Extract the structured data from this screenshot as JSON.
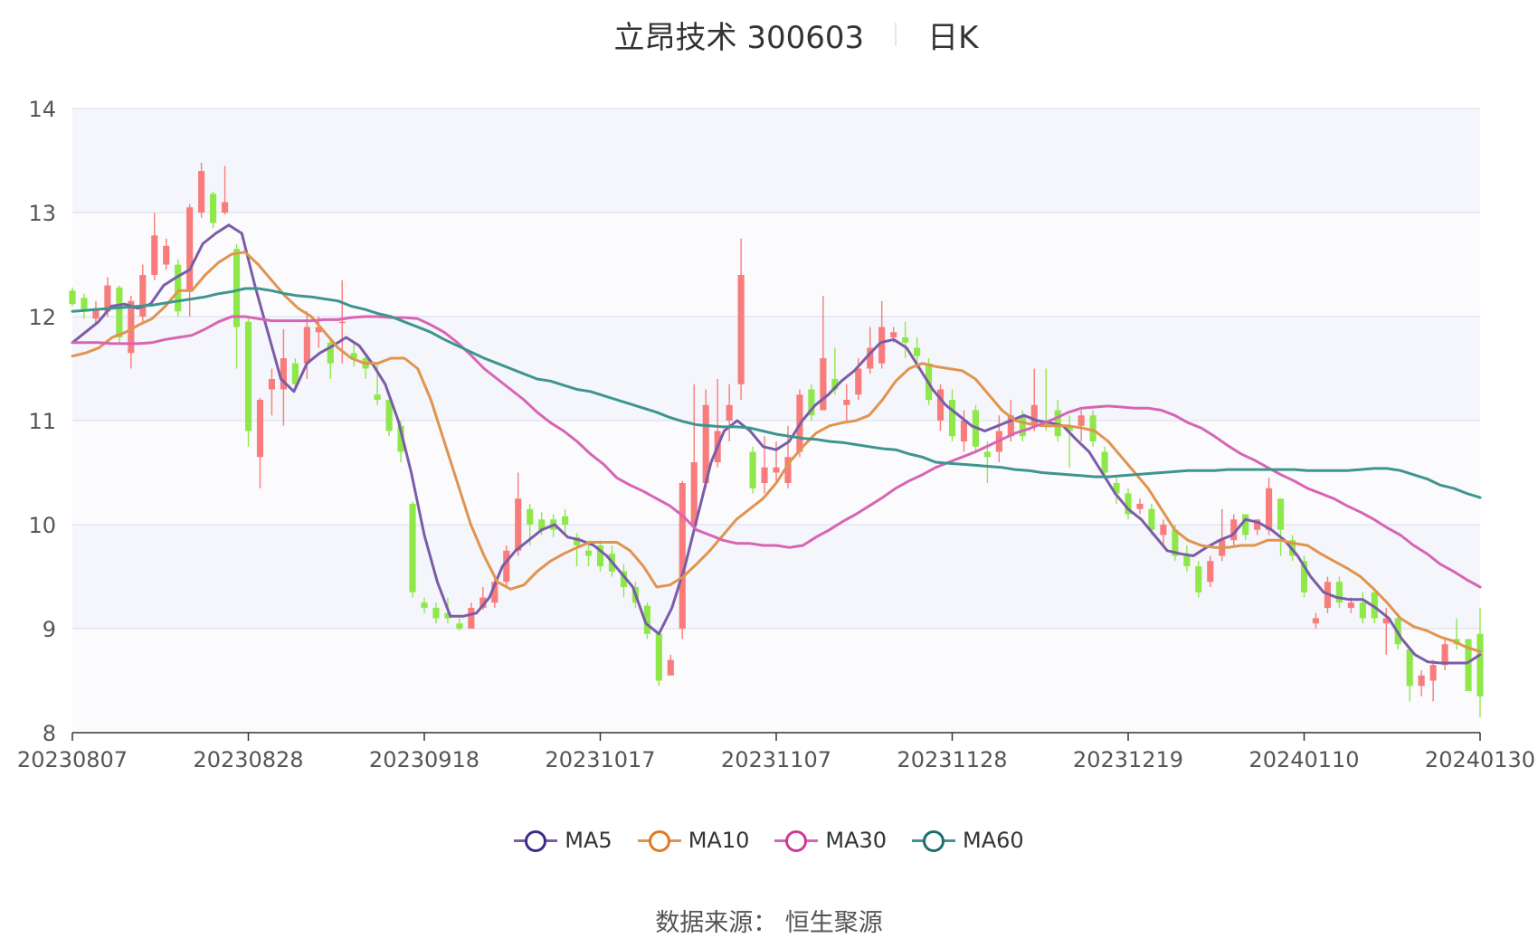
{
  "chart_data": {
    "type": "candlestick",
    "title": "立昂技术 300603",
    "subtitle": "日K",
    "source_label": "数据来源：",
    "source_value": "恒生聚源",
    "ylim": [
      8,
      14
    ],
    "yticks": [
      8,
      9,
      10,
      11,
      12,
      13,
      14
    ],
    "xticks": [
      "20230807",
      "20230828",
      "20230918",
      "20231017",
      "20231107",
      "20231128",
      "20231219",
      "20240110",
      "20240130"
    ],
    "up_color": "#f87c7c",
    "down_color": "#8ee84a",
    "grid": true,
    "legend_position": "bottom",
    "candles": [
      [
        12.25,
        12.12,
        12.28,
        12.1
      ],
      [
        12.18,
        12.05,
        12.22,
        11.98
      ],
      [
        11.98,
        12.08,
        12.15,
        11.92
      ],
      [
        12.05,
        12.3,
        12.38,
        12.0
      ],
      [
        12.28,
        11.8,
        12.3,
        11.75
      ],
      [
        11.65,
        12.15,
        12.2,
        11.5
      ],
      [
        12.0,
        12.4,
        12.5,
        11.95
      ],
      [
        12.4,
        12.78,
        13.0,
        12.35
      ],
      [
        12.5,
        12.68,
        12.75,
        12.45
      ],
      [
        12.5,
        12.05,
        12.55,
        12.0
      ],
      [
        12.25,
        13.05,
        13.08,
        12.0
      ],
      [
        13.0,
        13.4,
        13.48,
        12.95
      ],
      [
        13.18,
        12.9,
        13.2,
        12.85
      ],
      [
        13.0,
        13.1,
        13.45,
        12.98
      ],
      [
        12.65,
        11.9,
        12.7,
        11.5
      ],
      [
        11.95,
        10.9,
        12.0,
        10.75
      ],
      [
        10.65,
        11.2,
        11.22,
        10.35
      ],
      [
        11.3,
        11.4,
        11.5,
        11.05
      ],
      [
        11.3,
        11.6,
        11.88,
        10.95
      ],
      [
        11.55,
        11.35,
        11.6,
        11.3
      ],
      [
        11.55,
        11.9,
        12.05,
        11.4
      ],
      [
        11.85,
        11.9,
        12.0,
        11.7
      ],
      [
        11.75,
        11.55,
        11.8,
        11.4
      ],
      [
        11.95,
        11.95,
        12.35,
        11.55
      ],
      [
        11.65,
        11.6,
        11.75,
        11.52
      ],
      [
        11.6,
        11.5,
        11.65,
        11.4
      ],
      [
        11.25,
        11.2,
        11.55,
        11.15
      ],
      [
        11.2,
        10.9,
        11.2,
        10.85
      ],
      [
        10.95,
        10.7,
        11.0,
        10.6
      ],
      [
        10.2,
        9.35,
        10.22,
        9.3
      ],
      [
        9.25,
        9.2,
        9.3,
        9.15
      ],
      [
        9.2,
        9.1,
        9.25,
        9.05
      ],
      [
        9.15,
        9.1,
        9.3,
        9.05
      ],
      [
        9.05,
        9.0,
        9.1,
        8.98
      ],
      [
        9.0,
        9.2,
        9.25,
        9.0
      ],
      [
        9.2,
        9.3,
        9.4,
        9.18
      ],
      [
        9.25,
        9.45,
        9.5,
        9.2
      ],
      [
        9.45,
        9.75,
        9.8,
        9.4
      ],
      [
        9.75,
        10.25,
        10.5,
        9.7
      ],
      [
        10.15,
        10.0,
        10.2,
        9.8
      ],
      [
        10.05,
        9.95,
        10.12,
        9.9
      ],
      [
        10.05,
        9.95,
        10.1,
        9.88
      ],
      [
        10.08,
        10.0,
        10.15,
        9.92
      ],
      [
        9.88,
        9.8,
        9.92,
        9.6
      ],
      [
        9.75,
        9.7,
        9.85,
        9.6
      ],
      [
        9.8,
        9.6,
        9.85,
        9.55
      ],
      [
        9.72,
        9.55,
        9.8,
        9.5
      ],
      [
        9.55,
        9.4,
        9.62,
        9.3
      ],
      [
        9.4,
        9.25,
        9.45,
        9.2
      ],
      [
        9.22,
        8.95,
        9.25,
        8.9
      ],
      [
        8.95,
        8.5,
        8.95,
        8.45
      ],
      [
        8.55,
        8.7,
        8.75,
        8.55
      ],
      [
        9.0,
        10.4,
        10.42,
        8.9
      ],
      [
        10.0,
        10.6,
        11.35,
        10.0
      ],
      [
        10.4,
        11.15,
        11.3,
        10.35
      ],
      [
        10.6,
        10.9,
        11.4,
        10.55
      ],
      [
        11.0,
        11.15,
        11.35,
        10.8
      ],
      [
        11.35,
        12.4,
        12.75,
        11.2
      ],
      [
        10.7,
        10.35,
        10.75,
        10.3
      ],
      [
        10.4,
        10.55,
        10.85,
        10.3
      ],
      [
        10.5,
        10.55,
        10.8,
        10.4
      ],
      [
        10.4,
        10.65,
        10.95,
        10.35
      ],
      [
        10.7,
        11.25,
        11.3,
        10.65
      ],
      [
        11.3,
        11.05,
        11.35,
        11.0
      ],
      [
        11.1,
        11.6,
        12.2,
        11.1
      ],
      [
        11.4,
        11.3,
        11.7,
        11.25
      ],
      [
        11.15,
        11.2,
        11.35,
        11.0
      ],
      [
        11.25,
        11.5,
        11.6,
        11.2
      ],
      [
        11.5,
        11.7,
        11.9,
        11.45
      ],
      [
        11.55,
        11.9,
        12.15,
        11.5
      ],
      [
        11.8,
        11.85,
        11.9,
        11.75
      ],
      [
        11.8,
        11.75,
        11.95,
        11.6
      ],
      [
        11.7,
        11.62,
        11.8,
        11.5
      ],
      [
        11.55,
        11.2,
        11.6,
        11.15
      ],
      [
        11.0,
        11.3,
        11.35,
        10.9
      ],
      [
        11.2,
        10.85,
        11.3,
        10.8
      ],
      [
        10.8,
        11.0,
        11.1,
        10.7
      ],
      [
        11.1,
        10.75,
        11.15,
        10.7
      ],
      [
        10.7,
        10.65,
        10.8,
        10.4
      ],
      [
        10.7,
        10.9,
        11.05,
        10.6
      ],
      [
        10.85,
        11.05,
        11.2,
        10.8
      ],
      [
        11.05,
        10.85,
        11.1,
        10.8
      ],
      [
        10.95,
        11.15,
        11.5,
        10.9
      ],
      [
        11.0,
        10.95,
        11.5,
        10.9
      ],
      [
        11.1,
        10.85,
        11.2,
        10.8
      ],
      [
        10.95,
        10.9,
        11.05,
        10.55
      ],
      [
        10.95,
        11.05,
        11.1,
        10.8
      ],
      [
        11.05,
        10.8,
        11.1,
        10.75
      ],
      [
        10.7,
        10.5,
        10.75,
        10.45
      ],
      [
        10.4,
        10.3,
        10.45,
        10.2
      ],
      [
        10.3,
        10.1,
        10.35,
        10.05
      ],
      [
        10.15,
        10.2,
        10.25,
        10.1
      ],
      [
        10.15,
        9.95,
        10.2,
        9.9
      ],
      [
        9.9,
        10.0,
        10.05,
        9.8
      ],
      [
        9.95,
        9.7,
        10.0,
        9.65
      ],
      [
        9.7,
        9.6,
        9.8,
        9.55
      ],
      [
        9.6,
        9.35,
        9.65,
        9.3
      ],
      [
        9.45,
        9.65,
        9.7,
        9.4
      ],
      [
        9.7,
        9.85,
        10.15,
        9.65
      ],
      [
        9.85,
        10.05,
        10.1,
        9.8
      ],
      [
        10.1,
        9.9,
        10.1,
        9.85
      ],
      [
        9.95,
        10.05,
        10.05,
        9.9
      ],
      [
        9.95,
        10.35,
        10.45,
        9.9
      ],
      [
        10.25,
        9.95,
        10.25,
        9.7
      ],
      [
        9.85,
        9.7,
        9.9,
        9.65
      ],
      [
        9.65,
        9.35,
        9.7,
        9.3
      ],
      [
        9.05,
        9.1,
        9.15,
        9.0
      ],
      [
        9.2,
        9.45,
        9.5,
        9.15
      ],
      [
        9.45,
        9.25,
        9.5,
        9.2
      ],
      [
        9.2,
        9.25,
        9.3,
        9.15
      ],
      [
        9.25,
        9.1,
        9.35,
        9.05
      ],
      [
        9.35,
        9.1,
        9.35,
        9.05
      ],
      [
        9.05,
        9.1,
        9.2,
        8.75
      ],
      [
        9.1,
        8.85,
        9.15,
        8.8
      ],
      [
        8.8,
        8.45,
        8.8,
        8.3
      ],
      [
        8.45,
        8.55,
        8.6,
        8.35
      ],
      [
        8.5,
        8.65,
        8.7,
        8.3
      ],
      [
        8.65,
        8.85,
        8.9,
        8.6
      ],
      [
        8.9,
        8.85,
        9.1,
        8.8
      ],
      [
        8.9,
        8.4,
        8.9,
        8.4
      ],
      [
        8.95,
        8.35,
        9.2,
        8.15
      ]
    ],
    "series": [
      {
        "name": "MA5",
        "color": "#7b5ca8",
        "values": [
          11.75,
          11.85,
          11.95,
          12.1,
          12.12,
          12.08,
          12.12,
          12.3,
          12.38,
          12.45,
          12.7,
          12.8,
          12.88,
          12.8,
          12.3,
          11.85,
          11.4,
          11.28,
          11.55,
          11.65,
          11.72,
          11.8,
          11.72,
          11.55,
          11.35,
          11.0,
          10.5,
          9.9,
          9.45,
          9.12,
          9.12,
          9.15,
          9.3,
          9.6,
          9.75,
          9.85,
          9.95,
          10.0,
          9.88,
          9.85,
          9.8,
          9.7,
          9.55,
          9.4,
          9.05,
          8.95,
          9.2,
          9.6,
          10.1,
          10.6,
          10.9,
          11.0,
          10.9,
          10.75,
          10.72,
          10.8,
          11.0,
          11.15,
          11.25,
          11.38,
          11.48,
          11.62,
          11.75,
          11.78,
          11.7,
          11.5,
          11.3,
          11.15,
          11.05,
          10.95,
          10.9,
          10.95,
          11.0,
          11.05,
          11.0,
          10.98,
          10.95,
          10.82,
          10.7,
          10.5,
          10.3,
          10.15,
          10.05,
          9.9,
          9.75,
          9.72,
          9.7,
          9.78,
          9.85,
          9.9,
          10.05,
          10.02,
          9.95,
          9.85,
          9.7,
          9.5,
          9.35,
          9.3,
          9.28,
          9.28,
          9.2,
          9.1,
          8.9,
          8.75,
          8.68,
          8.67,
          8.67,
          8.67,
          8.75
        ]
      },
      {
        "name": "MA10",
        "color": "#e0944f",
        "values": [
          11.62,
          11.65,
          11.7,
          11.8,
          11.85,
          11.92,
          11.98,
          12.1,
          12.25,
          12.25,
          12.4,
          12.52,
          12.6,
          12.62,
          12.5,
          12.35,
          12.2,
          12.08,
          12.0,
          11.85,
          11.7,
          11.6,
          11.55,
          11.55,
          11.6,
          11.6,
          11.5,
          11.2,
          10.8,
          10.4,
          10.0,
          9.7,
          9.45,
          9.38,
          9.42,
          9.55,
          9.65,
          9.72,
          9.78,
          9.83,
          9.83,
          9.83,
          9.75,
          9.6,
          9.4,
          9.42,
          9.5,
          9.62,
          9.75,
          9.9,
          10.05,
          10.15,
          10.25,
          10.4,
          10.6,
          10.75,
          10.88,
          10.95,
          10.98,
          11.0,
          11.05,
          11.2,
          11.38,
          11.5,
          11.55,
          11.52,
          11.5,
          11.48,
          11.4,
          11.25,
          11.1,
          11.0,
          10.97,
          10.95,
          10.95,
          10.95,
          10.93,
          10.9,
          10.8,
          10.65,
          10.5,
          10.35,
          10.15,
          9.95,
          9.85,
          9.8,
          9.78,
          9.78,
          9.8,
          9.8,
          9.85,
          9.85,
          9.82,
          9.8,
          9.72,
          9.65,
          9.58,
          9.5,
          9.38,
          9.25,
          9.1,
          9.02,
          8.98,
          8.92,
          8.88,
          8.82,
          8.78
        ]
      },
      {
        "name": "MA30",
        "color": "#d764b4",
        "values": [
          11.75,
          11.75,
          11.75,
          11.74,
          11.74,
          11.74,
          11.75,
          11.78,
          11.8,
          11.82,
          11.88,
          11.95,
          12.0,
          12.0,
          11.98,
          11.96,
          11.96,
          11.96,
          11.96,
          11.97,
          11.97,
          11.99,
          12.0,
          12.0,
          11.99,
          11.99,
          11.98,
          11.92,
          11.85,
          11.75,
          11.63,
          11.5,
          11.4,
          11.3,
          11.2,
          11.08,
          10.98,
          10.9,
          10.8,
          10.68,
          10.58,
          10.45,
          10.38,
          10.32,
          10.25,
          10.18,
          10.08,
          9.95,
          9.9,
          9.85,
          9.82,
          9.82,
          9.8,
          9.8,
          9.78,
          9.8,
          9.88,
          9.95,
          10.03,
          10.1,
          10.18,
          10.26,
          10.35,
          10.42,
          10.48,
          10.55,
          10.6,
          10.65,
          10.7,
          10.76,
          10.82,
          10.88,
          10.92,
          10.97,
          11.02,
          11.08,
          11.12,
          11.13,
          11.14,
          11.13,
          11.12,
          11.12,
          11.1,
          11.05,
          10.98,
          10.93,
          10.85,
          10.76,
          10.68,
          10.62,
          10.55,
          10.48,
          10.42,
          10.35,
          10.3,
          10.25,
          10.18,
          10.12,
          10.05,
          9.97,
          9.9,
          9.8,
          9.72,
          9.62,
          9.55,
          9.47,
          9.4
        ]
      },
      {
        "name": "MA60",
        "color": "#3e958f",
        "values": [
          12.05,
          12.06,
          12.07,
          12.08,
          12.09,
          12.1,
          12.11,
          12.13,
          12.15,
          12.17,
          12.19,
          12.22,
          12.24,
          12.27,
          12.27,
          12.25,
          12.22,
          12.2,
          12.19,
          12.17,
          12.15,
          12.1,
          12.07,
          12.03,
          12.0,
          11.95,
          11.9,
          11.85,
          11.78,
          11.72,
          11.66,
          11.6,
          11.55,
          11.5,
          11.45,
          11.4,
          11.38,
          11.34,
          11.3,
          11.28,
          11.24,
          11.2,
          11.16,
          11.12,
          11.08,
          11.03,
          10.99,
          10.96,
          10.95,
          10.94,
          10.94,
          10.93,
          10.9,
          10.87,
          10.85,
          10.83,
          10.82,
          10.8,
          10.79,
          10.77,
          10.75,
          10.73,
          10.72,
          10.68,
          10.65,
          10.6,
          10.59,
          10.58,
          10.57,
          10.56,
          10.55,
          10.53,
          10.52,
          10.5,
          10.49,
          10.48,
          10.47,
          10.46,
          10.46,
          10.47,
          10.48,
          10.49,
          10.5,
          10.51,
          10.52,
          10.52,
          10.52,
          10.53,
          10.53,
          10.53,
          10.53,
          10.53,
          10.53,
          10.52,
          10.52,
          10.52,
          10.52,
          10.53,
          10.54,
          10.54,
          10.52,
          10.48,
          10.44,
          10.38,
          10.35,
          10.3,
          10.26
        ]
      }
    ]
  }
}
